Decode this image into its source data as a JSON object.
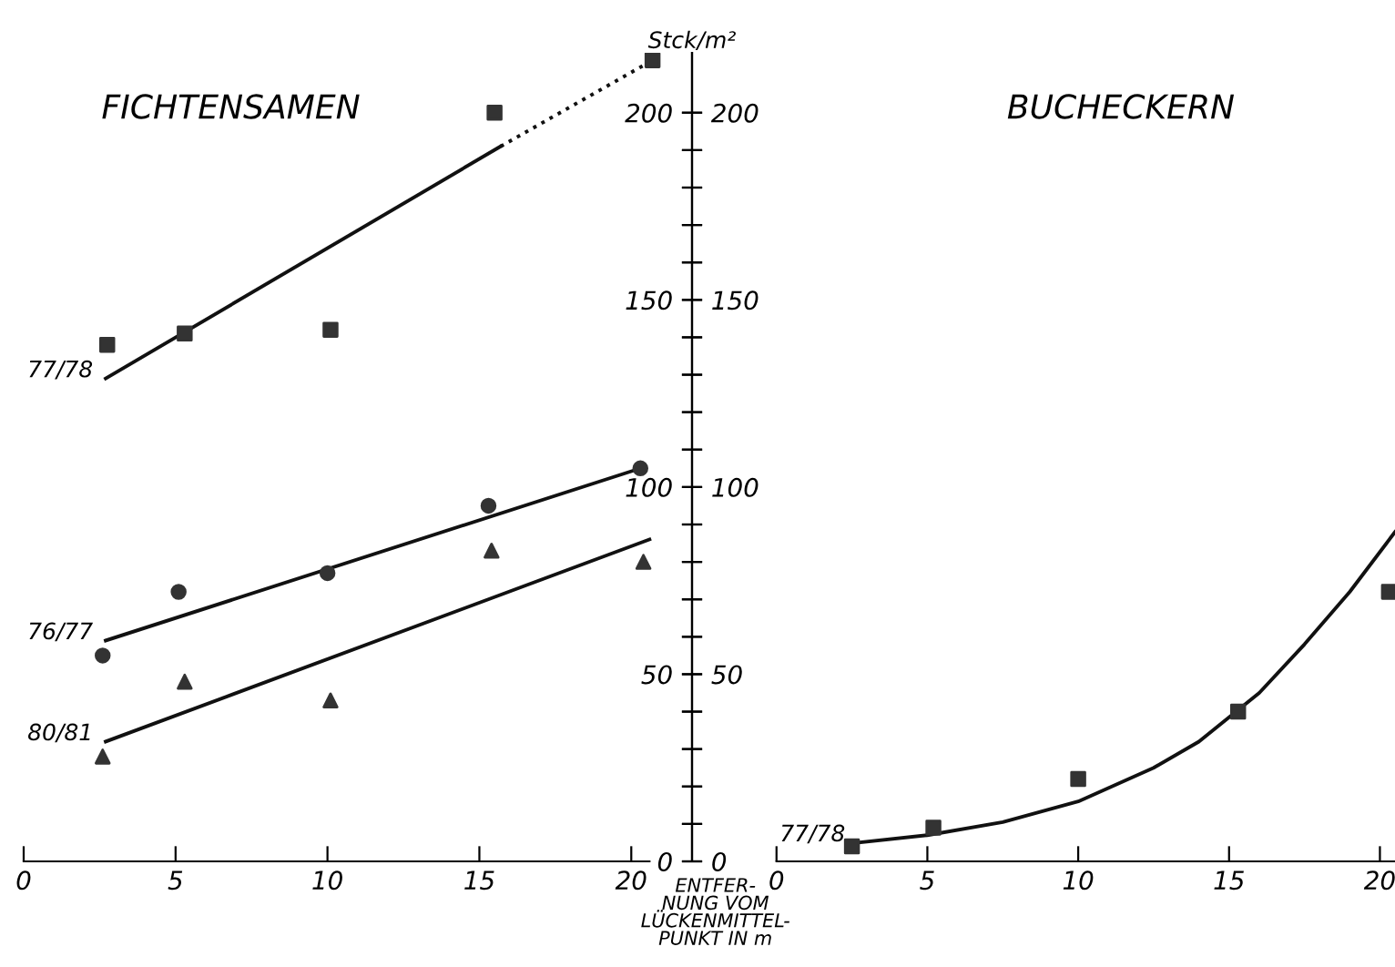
{
  "chart_data": [
    {
      "type": "line",
      "title": "FICHTENSAMEN",
      "ylabel": "Stck/m²",
      "xlabel": "ENTFER-\nNUNG VOM\nLÜCKENMITTEL-\nPUNKT IN m",
      "xlim": [
        0,
        22
      ],
      "xticks": [
        0,
        5,
        10,
        15,
        20
      ],
      "ylim": [
        0,
        216
      ],
      "yticks": [
        0,
        {
          "value": 10,
          "label": null
        },
        {
          "value": 20,
          "label": null
        },
        {
          "value": 30,
          "label": null
        },
        {
          "value": 40,
          "label": null
        },
        50,
        {
          "value": 60,
          "label": null
        },
        {
          "value": 70,
          "label": null
        },
        {
          "value": 80,
          "label": null
        },
        {
          "value": 90,
          "label": null
        },
        100,
        {
          "value": 110,
          "label": null
        },
        {
          "value": 120,
          "label": null
        },
        {
          "value": 130,
          "label": null
        },
        {
          "value": 140,
          "label": null
        },
        150,
        {
          "value": 160,
          "label": null
        },
        {
          "value": 170,
          "label": null
        },
        {
          "value": 180,
          "label": null
        },
        {
          "value": 190,
          "label": null
        },
        200
      ],
      "grid": false,
      "legend": false,
      "series": [
        {
          "type": "scatter",
          "marker": "square",
          "color": "#333333",
          "x": [
            2.75,
            5.3,
            10.1,
            15.5,
            20.7
          ],
          "values": [
            138,
            141,
            142,
            200,
            214
          ]
        },
        {
          "name": "77/78",
          "marker": "none",
          "line_style": "solid",
          "color": "#111111",
          "x": [
            2.7,
            15.7
          ],
          "values": [
            129,
            191
          ]
        },
        {
          "marker": "none",
          "line_style": "dotted",
          "color": "#111111",
          "x": [
            15.7,
            20.7
          ],
          "values": [
            191,
            214
          ]
        },
        {
          "type": "scatter",
          "marker": "circle",
          "color": "#333333",
          "x": [
            2.6,
            5.1,
            10.0,
            15.3,
            20.3
          ],
          "values": [
            55,
            72,
            77,
            95,
            105
          ]
        },
        {
          "name": "76/77",
          "marker": "none",
          "line_style": "solid",
          "color": "#111111",
          "x": [
            2.7,
            20.3
          ],
          "values": [
            59,
            105
          ]
        },
        {
          "type": "scatter",
          "marker": "triangle",
          "color": "#333333",
          "x": [
            2.6,
            5.3,
            10.1,
            15.4,
            20.4
          ],
          "values": [
            28,
            48,
            43,
            83,
            80
          ]
        },
        {
          "name": "80/81",
          "marker": "none",
          "line_style": "solid",
          "color": "#111111",
          "x": [
            2.7,
            20.6
          ],
          "values": [
            32,
            86
          ]
        }
      ]
    },
    {
      "type": "line",
      "title": "BUCHECKERN",
      "xlim": [
        -2.8,
        20.5
      ],
      "xticks": [
        0,
        5,
        10,
        15,
        20
      ],
      "ylim": [
        0,
        216
      ],
      "yticks": [
        0,
        {
          "value": 10,
          "label": null
        },
        {
          "value": 20,
          "label": null
        },
        {
          "value": 30,
          "label": null
        },
        {
          "value": 40,
          "label": null
        },
        50,
        {
          "value": 60,
          "label": null
        },
        {
          "value": 70,
          "label": null
        },
        {
          "value": 80,
          "label": null
        },
        {
          "value": 90,
          "label": null
        },
        100,
        {
          "value": 110,
          "label": null
        },
        {
          "value": 120,
          "label": null
        },
        {
          "value": 130,
          "label": null
        },
        {
          "value": 140,
          "label": null
        },
        150,
        {
          "value": 160,
          "label": null
        },
        {
          "value": 170,
          "label": null
        },
        {
          "value": 180,
          "label": null
        },
        {
          "value": 190,
          "label": null
        },
        200
      ],
      "grid": false,
      "legend": false,
      "series": [
        {
          "type": "scatter",
          "marker": "square",
          "color": "#333333",
          "x": [
            2.5,
            5.2,
            10.0,
            15.3,
            20.3
          ],
          "values": [
            4,
            9,
            22,
            40,
            72
          ]
        },
        {
          "name": "77/78",
          "marker": "none",
          "line_style": "solid",
          "color": "#111111",
          "x": [
            2.7,
            5,
            7.5,
            10,
            12.5,
            14,
            15,
            16,
            17.5,
            19,
            20.5
          ],
          "values": [
            5,
            7,
            10.5,
            16,
            25,
            32,
            38.5,
            45,
            58,
            72,
            88
          ]
        }
      ]
    }
  ]
}
